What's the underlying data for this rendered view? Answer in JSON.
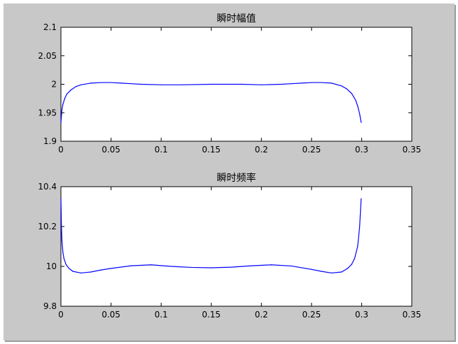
{
  "colors": {
    "background": "#c8c8c8",
    "axes_face": "#ffffff",
    "axes_edge": "#000000",
    "line": "#0000ff"
  },
  "chart_data": [
    {
      "type": "line",
      "title": "瞬时幅值",
      "xlabel": "",
      "ylabel": "",
      "xlim": [
        0,
        0.35
      ],
      "ylim": [
        1.9,
        2.1
      ],
      "xticks": [
        "0",
        "0.05",
        "0.1",
        "0.15",
        "0.2",
        "0.25",
        "0.3",
        "0.35"
      ],
      "yticks": [
        "1.9",
        "1.95",
        "2",
        "2.05",
        "2.1"
      ],
      "grid": false,
      "series": [
        {
          "x": [
            0,
            0.001,
            0.002,
            0.004,
            0.006,
            0.01,
            0.015,
            0.02,
            0.03,
            0.04,
            0.05,
            0.06,
            0.07,
            0.08,
            0.1,
            0.12,
            0.15,
            0.18,
            0.2,
            0.22,
            0.23,
            0.24,
            0.25,
            0.26,
            0.27,
            0.28,
            0.285,
            0.29,
            0.294,
            0.296,
            0.298,
            0.2995
          ],
          "y": [
            1.933,
            1.955,
            1.965,
            1.976,
            1.983,
            1.99,
            1.996,
            1.999,
            2.002,
            2.003,
            2.003,
            2.002,
            2.001,
            2.0,
            1.999,
            1.999,
            2.0,
            2.0,
            1.999,
            2.0,
            2.001,
            2.002,
            2.003,
            2.003,
            2.002,
            1.997,
            1.992,
            1.984,
            1.972,
            1.962,
            1.948,
            1.933
          ]
        }
      ]
    },
    {
      "type": "line",
      "title": "瞬时频率",
      "xlabel": "",
      "ylabel": "",
      "xlim": [
        0,
        0.35
      ],
      "ylim": [
        9.8,
        10.4
      ],
      "xticks": [
        "0",
        "0.05",
        "0.1",
        "0.15",
        "0.2",
        "0.25",
        "0.3",
        "0.35"
      ],
      "yticks": [
        "9.8",
        "10",
        "10.2",
        "10.4"
      ],
      "grid": false,
      "series": [
        {
          "x": [
            0,
            0.0005,
            0.001,
            0.002,
            0.003,
            0.005,
            0.008,
            0.012,
            0.02,
            0.03,
            0.04,
            0.05,
            0.07,
            0.09,
            0.11,
            0.13,
            0.15,
            0.17,
            0.19,
            0.21,
            0.23,
            0.25,
            0.26,
            0.27,
            0.28,
            0.286,
            0.29,
            0.293,
            0.296,
            0.298,
            0.2995
          ],
          "y": [
            10.34,
            10.2,
            10.13,
            10.07,
            10.04,
            10.01,
            9.99,
            9.975,
            9.967,
            9.972,
            9.982,
            9.99,
            10.003,
            10.008,
            10.0,
            9.995,
            9.993,
            9.996,
            10.003,
            10.008,
            10.002,
            9.985,
            9.975,
            9.967,
            9.972,
            9.99,
            10.01,
            10.04,
            10.1,
            10.2,
            10.34
          ]
        }
      ]
    }
  ]
}
